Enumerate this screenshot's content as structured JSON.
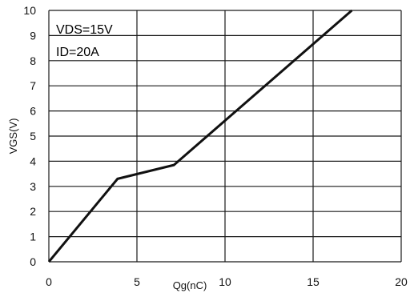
{
  "chart_data": {
    "type": "line",
    "xlabel": "Qg(nC)",
    "ylabel": "VGS(V)",
    "xlim": [
      0,
      20
    ],
    "ylim": [
      0,
      10
    ],
    "grid": true,
    "x_ticks": [
      "0",
      "5",
      "10",
      "15",
      "20"
    ],
    "y_ticks": [
      "0",
      "1",
      "2",
      "3",
      "4",
      "5",
      "6",
      "7",
      "8",
      "9",
      "10"
    ],
    "annotations": [
      "VDS=15V",
      "ID=20A"
    ],
    "series": [
      {
        "x": [
          0,
          3.9,
          7.1,
          17.2
        ],
        "y": [
          0,
          3.3,
          3.85,
          10
        ]
      }
    ],
    "colors": {
      "line": "#111111",
      "grid": "#1a1a1a",
      "background": "#ffffff"
    }
  }
}
